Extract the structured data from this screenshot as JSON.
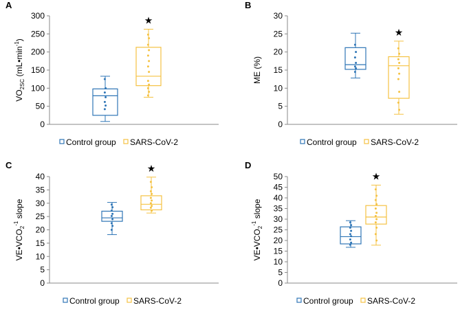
{
  "colors": {
    "control": "#2e75b6",
    "sars": "#f5c242",
    "axis": "#888888",
    "text": "#000000"
  },
  "legend": {
    "control_label": "Control group",
    "sars_label": "SARS-CoV-2"
  },
  "significance_marker": "★",
  "chart_data": [
    {
      "panel_label": "A",
      "type": "box",
      "ylabel_parts": [
        "VO",
        "2SC",
        " (mL•min",
        "-1",
        ")"
      ],
      "ylim": [
        0,
        300
      ],
      "ytick_step": 50,
      "groups": [
        {
          "name": "Control group",
          "min": 8,
          "q1": 25,
          "median": 79,
          "q3": 98,
          "max": 133,
          "points": [
            125,
            100,
            88,
            75,
            62,
            52,
            42
          ]
        },
        {
          "name": "SARS-CoV-2",
          "min": 75,
          "q1": 107,
          "median": 133,
          "q3": 213,
          "max": 263,
          "points": [
            248,
            238,
            220,
            205,
            190,
            175,
            160,
            145,
            120,
            110,
            100,
            90,
            80
          ]
        }
      ],
      "significance_group": 1
    },
    {
      "panel_label": "B",
      "type": "box",
      "ylabel_parts": [
        "ME (%)"
      ],
      "ylim": [
        0,
        30
      ],
      "ytick_step": 5,
      "groups": [
        {
          "name": "Control group",
          "min": 12.8,
          "q1": 15.2,
          "median": 16.5,
          "q3": 21.2,
          "max": 25.2,
          "points": [
            22,
            20,
            18.5,
            17,
            16,
            15.5,
            14.5
          ]
        },
        {
          "name": "SARS-CoV-2",
          "min": 2.8,
          "q1": 7.2,
          "median": 16.2,
          "q3": 18.7,
          "max": 23,
          "points": [
            21,
            19.5,
            18,
            17,
            15.5,
            14,
            12.5,
            9,
            6,
            4
          ]
        }
      ],
      "significance_group": 1
    },
    {
      "panel_label": "C",
      "type": "box",
      "ylabel_parts": [
        "VE•VCO",
        "2",
        "-1",
        " slope"
      ],
      "ylim": [
        0,
        40
      ],
      "ytick_step": 5,
      "groups": [
        {
          "name": "Control group",
          "min": 18.2,
          "q1": 23.2,
          "median": 24.5,
          "q3": 27,
          "max": 30.3,
          "points": [
            29.5,
            28.5,
            27.2,
            26,
            25.2,
            24,
            22.5,
            21.5,
            20
          ]
        },
        {
          "name": "SARS-CoV-2",
          "min": 26.3,
          "q1": 27.5,
          "median": 29.6,
          "q3": 32.8,
          "max": 39.8,
          "points": [
            38,
            36,
            34.5,
            33.5,
            32,
            31,
            30,
            29,
            28.3,
            27.2
          ]
        }
      ],
      "significance_group": 1
    },
    {
      "panel_label": "D",
      "type": "box",
      "ylabel_parts": [
        "VE•VCO",
        "2",
        "-1",
        " slope"
      ],
      "ylim": [
        0,
        50
      ],
      "ytick_step": 5,
      "groups": [
        {
          "name": "Control group",
          "min": 16.8,
          "q1": 18.4,
          "median": 21.8,
          "q3": 26.4,
          "max": 29.3,
          "points": [
            28.5,
            27.2,
            26,
            24.5,
            23,
            22,
            20.5,
            19,
            18
          ]
        },
        {
          "name": "SARS-CoV-2",
          "min": 17.8,
          "q1": 27.7,
          "median": 31,
          "q3": 36.4,
          "max": 46,
          "points": [
            44,
            41,
            39,
            37,
            35,
            33,
            31.5,
            30,
            28.5,
            26,
            23,
            20
          ]
        }
      ],
      "significance_group": 1
    }
  ]
}
